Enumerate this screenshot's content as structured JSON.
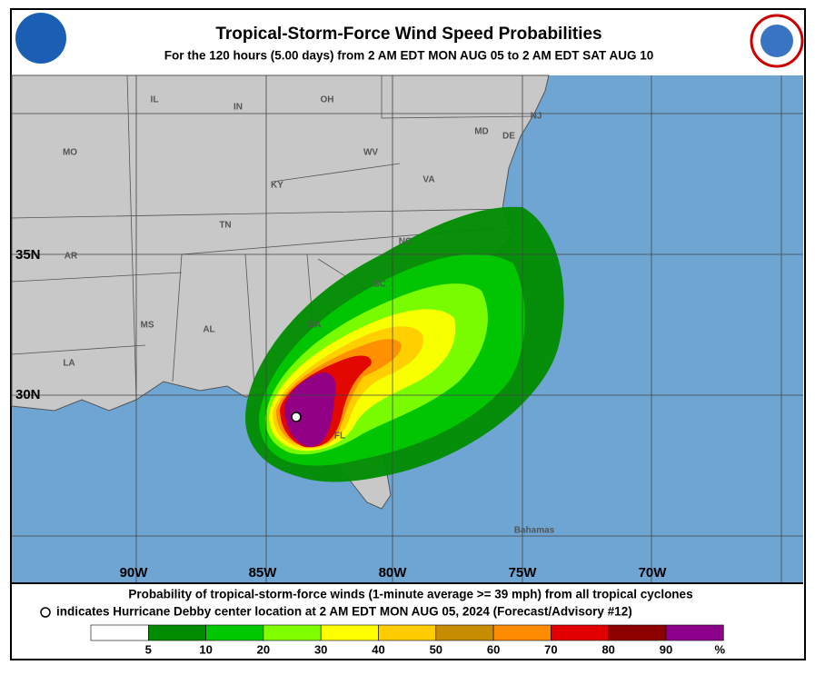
{
  "header": {
    "title": "Tropical-Storm-Force Wind Speed Probabilities",
    "subtitle": "For the 120 hours (5.00 days) from 2 AM EDT MON AUG 05 to 2 AM EDT SAT AUG 10"
  },
  "map": {
    "longitudes": [
      "90W",
      "85W",
      "80W",
      "75W",
      "70W"
    ],
    "latitudes": [
      "35N",
      "30N"
    ],
    "places": [
      "IL",
      "IN",
      "OH",
      "MO",
      "WV",
      "KY",
      "VA",
      "TN",
      "NC",
      "AR",
      "SC",
      "MS",
      "AL",
      "GA",
      "LA",
      "FL",
      "NJ",
      "MD",
      "DE",
      "Bahamas"
    ]
  },
  "footer": {
    "line1": "Probability of tropical-storm-force winds (1-minute average >= 39 mph) from all tropical cyclones",
    "line2": "indicates Hurricane Debby center location at 2 AM EDT MON AUG 05, 2024 (Forecast/Advisory #12)"
  },
  "legend": {
    "colors": [
      "#ffffff",
      "#008c00",
      "#00c800",
      "#80ff00",
      "#ffff00",
      "#ffcc00",
      "#c88c00",
      "#ff8c00",
      "#e00000",
      "#8c0000",
      "#8c008c"
    ],
    "ticks": [
      5,
      10,
      20,
      30,
      40,
      50,
      60,
      70,
      80,
      90
    ],
    "unit": "%"
  }
}
